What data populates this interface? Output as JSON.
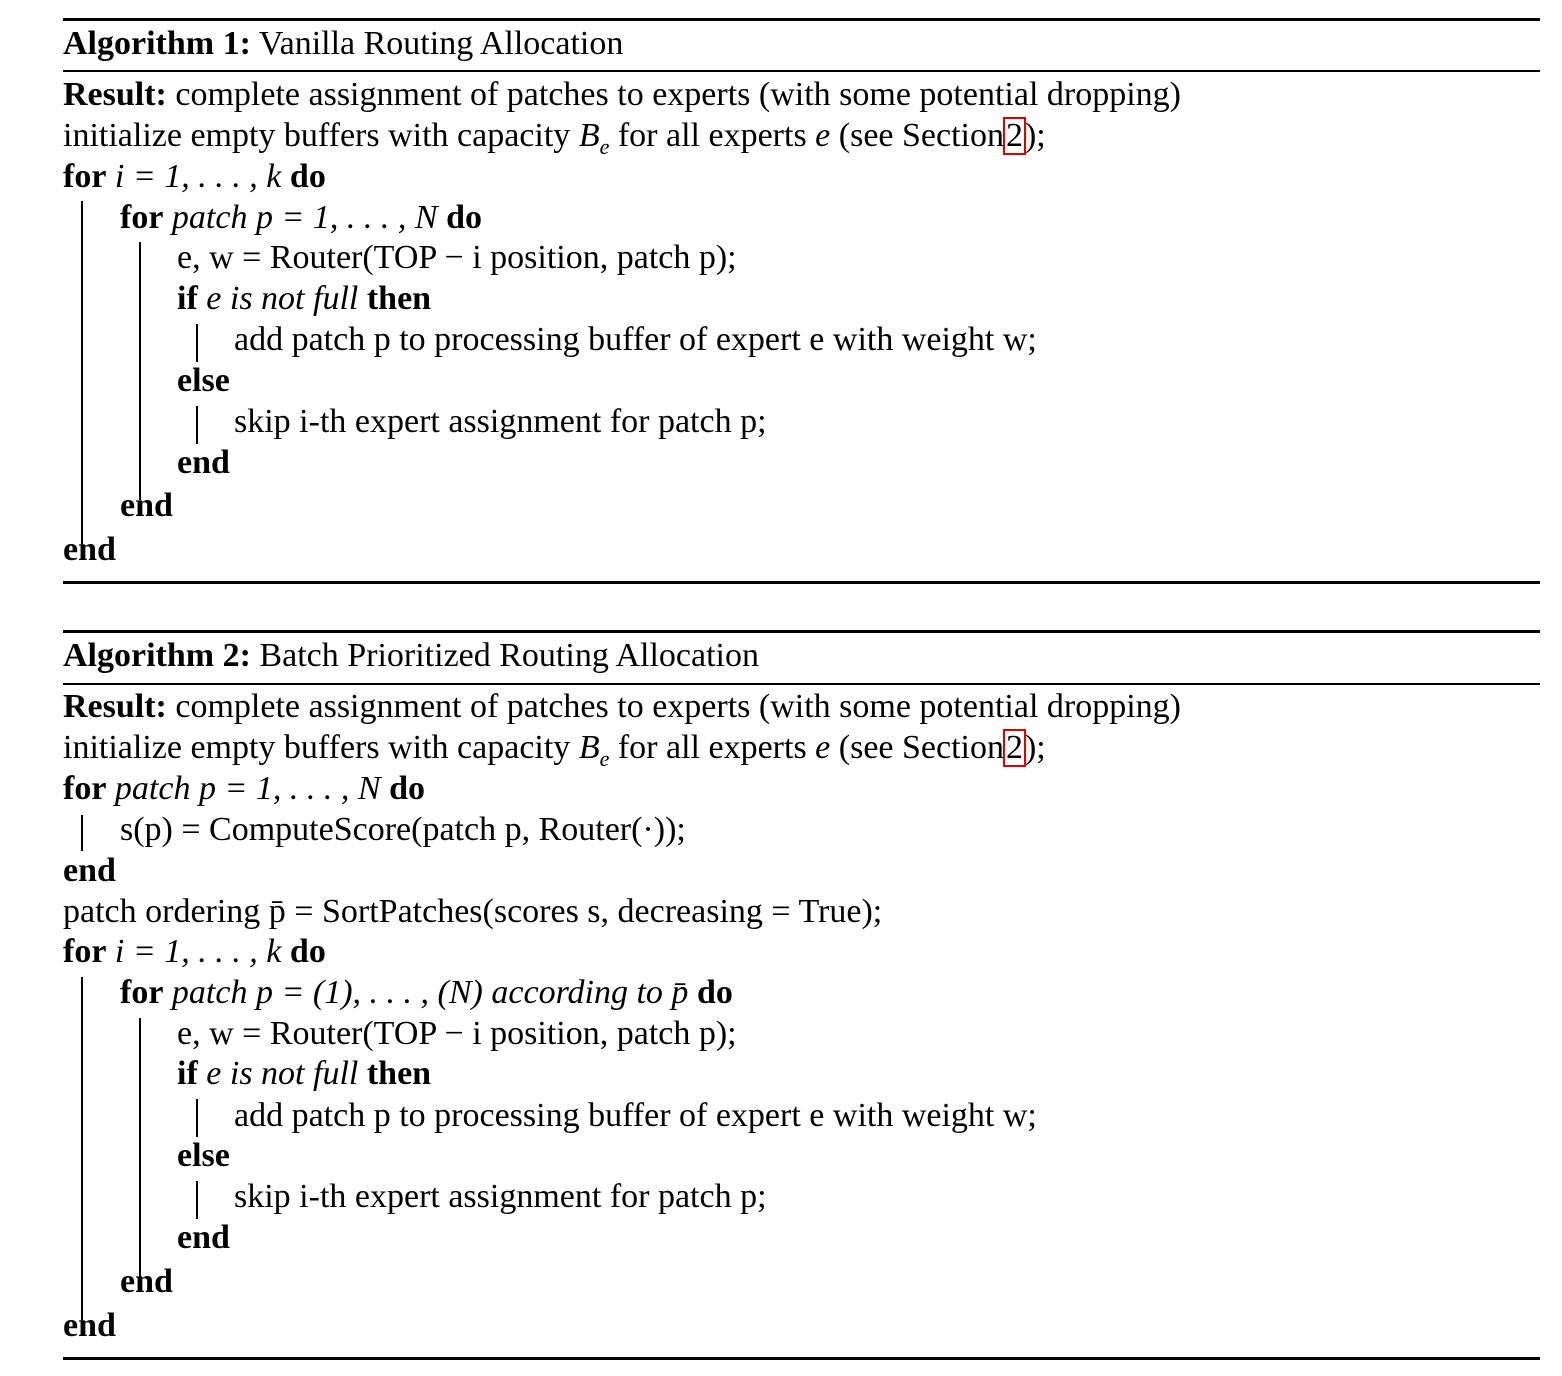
{
  "algorithms": [
    {
      "label": "Algorithm 1:",
      "title": "Vanilla Routing Allocation",
      "result_label": "Result:",
      "result_text": "complete assignment of patches to experts (with some potential dropping)",
      "init_pre": "initialize empty buffers with capacity",
      "init_cap": "B",
      "init_cap_sub": "e",
      "init_mid": "for all experts",
      "init_var": "e",
      "init_see": "(see Section",
      "init_ref": "2",
      "init_post": ");",
      "lines": {
        "for_outer_kw": "for",
        "for_outer_expr": "i = 1, . . . , k",
        "for_outer_do": "do",
        "for_inner_kw": "for",
        "for_inner_cond": "patch",
        "for_inner_expr": "p = 1, . . . , N",
        "for_inner_do": "do",
        "router_call": "e, w = Router(TOP − i position, patch p);",
        "if_kw": "if",
        "if_cond": "e is not full",
        "then_kw": "then",
        "add_stmt": "add patch p to processing buffer of expert e with weight w;",
        "else_kw": "else",
        "skip_stmt": "skip i-th expert assignment for patch p;",
        "end_if": "end",
        "end_inner": "end",
        "end_outer": "end"
      }
    },
    {
      "label": "Algorithm 2:",
      "title": "Batch Prioritized Routing Allocation",
      "result_label": "Result:",
      "result_text": "complete assignment of patches to experts (with some potential dropping)",
      "init_pre": "initialize empty buffers with capacity",
      "init_cap": "B",
      "init_cap_sub": "e",
      "init_mid": "for all experts",
      "init_var": "e",
      "init_see": "(see Section",
      "init_ref": "2",
      "init_post": ");",
      "lines": {
        "for_score_kw": "for",
        "for_score_cond": "patch",
        "for_score_expr": "p = 1, . . . , N",
        "for_score_do": "do",
        "score_stmt": "s(p) = ComputeScore(patch p,  Router(·));",
        "end_score": "end",
        "sort_stmt": "patch ordering p̄ = SortPatches(scores s, decreasing = True);",
        "for_outer_kw": "for",
        "for_outer_expr": "i = 1, . . . , k",
        "for_outer_do": "do",
        "for_inner_kw": "for",
        "for_inner_cond": "patch",
        "for_inner_expr": "p = (1), . . . , (N)",
        "for_inner_according": "according to p̄",
        "for_inner_do": "do",
        "router_call": "e, w = Router(TOP − i position,  patch p);",
        "if_kw": "if",
        "if_cond": "e is not full",
        "then_kw": "then",
        "add_stmt": "add patch p to processing buffer of expert e with weight w;",
        "else_kw": "else",
        "skip_stmt": "skip i-th expert assignment for patch p;",
        "end_if": "end",
        "end_inner": "end",
        "end_outer": "end"
      }
    }
  ]
}
